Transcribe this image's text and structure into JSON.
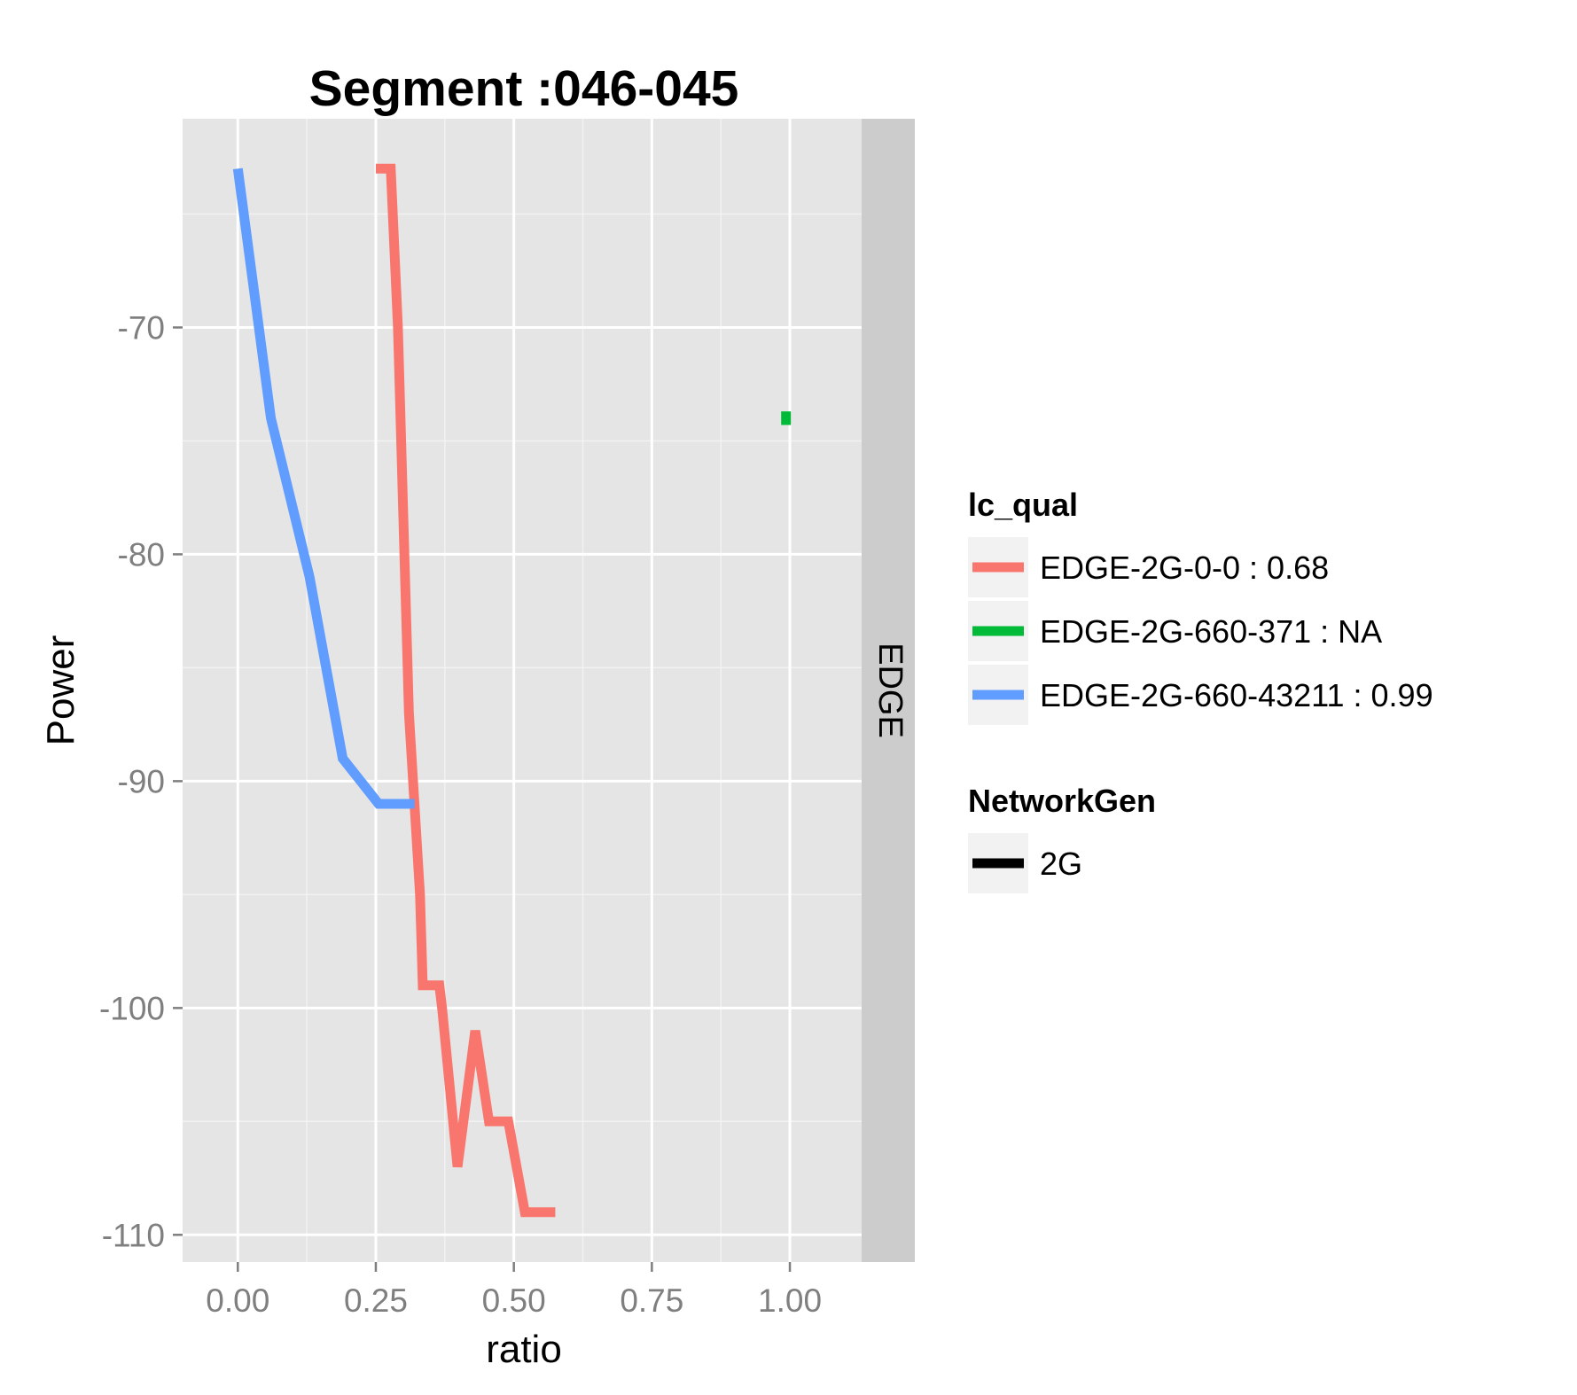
{
  "chart_data": {
    "type": "line",
    "title": "Segment :046-045",
    "xlabel": "ratio",
    "ylabel": "Power",
    "xlim": [
      -0.1,
      1.13
    ],
    "ylim": [
      -111.2,
      -60.8
    ],
    "x_ticks": [
      0.0,
      0.25,
      0.5,
      0.75,
      1.0
    ],
    "x_tick_labels": [
      "0.00",
      "0.25",
      "0.50",
      "0.75",
      "1.00"
    ],
    "y_ticks": [
      -70,
      -80,
      -90,
      -100,
      -110
    ],
    "y_tick_labels": [
      "-70",
      "-80",
      "-90",
      "-100",
      "-110"
    ],
    "grid": true,
    "facet_label": "EDGE",
    "legend_placement": "right",
    "series": [
      {
        "name": "EDGE-2G-0-0 : 0.68",
        "color": "#F8766D",
        "x": [
          0.25,
          0.277,
          0.29,
          0.31,
          0.33,
          0.335,
          0.365,
          0.37,
          0.398,
          0.43,
          0.455,
          0.49,
          0.52,
          0.575
        ],
        "y": [
          -63,
          -63,
          -70,
          -87,
          -95,
          -99,
          -99,
          -100,
          -107,
          -101,
          -105,
          -105,
          -109,
          -109
        ]
      },
      {
        "name": "EDGE-2G-660-371 : NA",
        "color": "#00BA38",
        "x": [
          0.993,
          0.993
        ],
        "y": [
          -73.7,
          -74.3
        ]
      },
      {
        "name": "EDGE-2G-660-43211 : 0.99",
        "color": "#619CFF",
        "x": [
          0.0,
          0.06,
          0.13,
          0.19,
          0.255,
          0.32
        ],
        "y": [
          -63,
          -74,
          -81,
          -89,
          -91,
          -91
        ]
      }
    ],
    "legends": [
      {
        "title": "lc_qual",
        "entries": [
          {
            "label": "EDGE-2G-0-0 : 0.68",
            "color": "#F8766D"
          },
          {
            "label": "EDGE-2G-660-371 : NA",
            "color": "#00BA38"
          },
          {
            "label": "EDGE-2G-660-43211 : 0.99",
            "color": "#619CFF"
          }
        ]
      },
      {
        "title": "NetworkGen",
        "entries": [
          {
            "label": "2G",
            "color": "#000000"
          }
        ]
      }
    ]
  }
}
